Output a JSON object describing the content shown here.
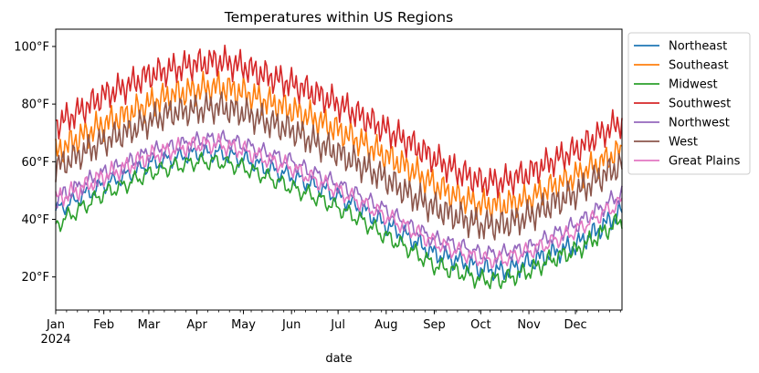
{
  "chart_data": {
    "type": "line",
    "title": "Temperatures within US Regions",
    "xlabel": "date",
    "ylabel": "",
    "x_range": [
      "2024-01-01",
      "2024-12-31"
    ],
    "ylim": [
      8.5,
      106
    ],
    "y_ticks": [
      {
        "value": 20,
        "label": "20°F"
      },
      {
        "value": 40,
        "label": "40°F"
      },
      {
        "value": 60,
        "label": "60°F"
      },
      {
        "value": 80,
        "label": "80°F"
      },
      {
        "value": 100,
        "label": "100°F"
      }
    ],
    "x_ticks": [
      {
        "date": "2024-01-01",
        "label": "Jan",
        "sublabel": "2024"
      },
      {
        "date": "2024-02-01",
        "label": "Feb"
      },
      {
        "date": "2024-03-01",
        "label": "Mar"
      },
      {
        "date": "2024-04-01",
        "label": "Apr"
      },
      {
        "date": "2024-05-01",
        "label": "May"
      },
      {
        "date": "2024-06-01",
        "label": "Jun"
      },
      {
        "date": "2024-07-01",
        "label": "Jul"
      },
      {
        "date": "2024-08-01",
        "label": "Aug"
      },
      {
        "date": "2024-09-01",
        "label": "Sep"
      },
      {
        "date": "2024-10-01",
        "label": "Oct"
      },
      {
        "date": "2024-11-01",
        "label": "Nov"
      },
      {
        "date": "2024-12-01",
        "label": "Dec"
      }
    ],
    "legend_position": "outside-top-right",
    "grid": false,
    "x": [
      "2024-01-01",
      "2024-01-15",
      "2024-02-01",
      "2024-02-15",
      "2024-03-01",
      "2024-03-15",
      "2024-04-01",
      "2024-04-15",
      "2024-05-01",
      "2024-05-15",
      "2024-06-01",
      "2024-06-15",
      "2024-07-01",
      "2024-07-15",
      "2024-08-01",
      "2024-08-15",
      "2024-09-01",
      "2024-09-15",
      "2024-10-01",
      "2024-10-15",
      "2024-11-01",
      "2024-11-15",
      "2024-12-01",
      "2024-12-15",
      "2024-12-31"
    ],
    "series": [
      {
        "name": "Northeast",
        "color": "#1f77b4",
        "values": [
          43,
          47,
          52,
          55,
          59,
          61,
          63,
          63,
          61,
          58,
          55,
          52,
          48,
          44,
          38,
          34,
          28,
          26,
          23,
          22,
          25,
          28,
          31,
          36,
          43
        ]
      },
      {
        "name": "Southeast",
        "color": "#ff7f0e",
        "values": [
          63,
          68,
          73,
          76,
          80,
          83,
          85,
          86,
          84,
          81,
          78,
          75,
          71,
          67,
          62,
          58,
          52,
          48,
          45,
          45,
          47,
          51,
          55,
          59,
          64
        ]
      },
      {
        "name": "Midwest",
        "color": "#2ca02c",
        "values": [
          38,
          43,
          49,
          52,
          56,
          58,
          60,
          60,
          58,
          55,
          51,
          48,
          44,
          40,
          34,
          30,
          24,
          22,
          19,
          19,
          22,
          26,
          29,
          34,
          40
        ]
      },
      {
        "name": "Southwest",
        "color": "#d62728",
        "values": [
          73,
          77,
          83,
          86,
          90,
          92,
          94,
          95,
          93,
          90,
          87,
          84,
          80,
          76,
          71,
          67,
          61,
          57,
          53,
          53,
          56,
          60,
          64,
          69,
          74
        ]
      },
      {
        "name": "Northwest",
        "color": "#9467bd",
        "values": [
          47,
          51,
          56,
          59,
          63,
          65,
          67,
          68,
          66,
          63,
          60,
          56,
          52,
          48,
          43,
          38,
          33,
          31,
          28,
          28,
          30,
          34,
          38,
          43,
          49
        ]
      },
      {
        "name": "West",
        "color": "#8c564b",
        "values": [
          58,
          62,
          67,
          70,
          74,
          77,
          78,
          79,
          77,
          74,
          71,
          67,
          63,
          59,
          54,
          49,
          44,
          41,
          38,
          38,
          41,
          45,
          49,
          54,
          59
        ]
      },
      {
        "name": "Great Plains",
        "color": "#e377c2",
        "values": [
          47,
          50,
          55,
          58,
          62,
          64,
          66,
          66,
          64,
          61,
          58,
          54,
          50,
          46,
          41,
          37,
          32,
          29,
          26,
          26,
          29,
          32,
          36,
          41,
          46
        ]
      }
    ]
  }
}
